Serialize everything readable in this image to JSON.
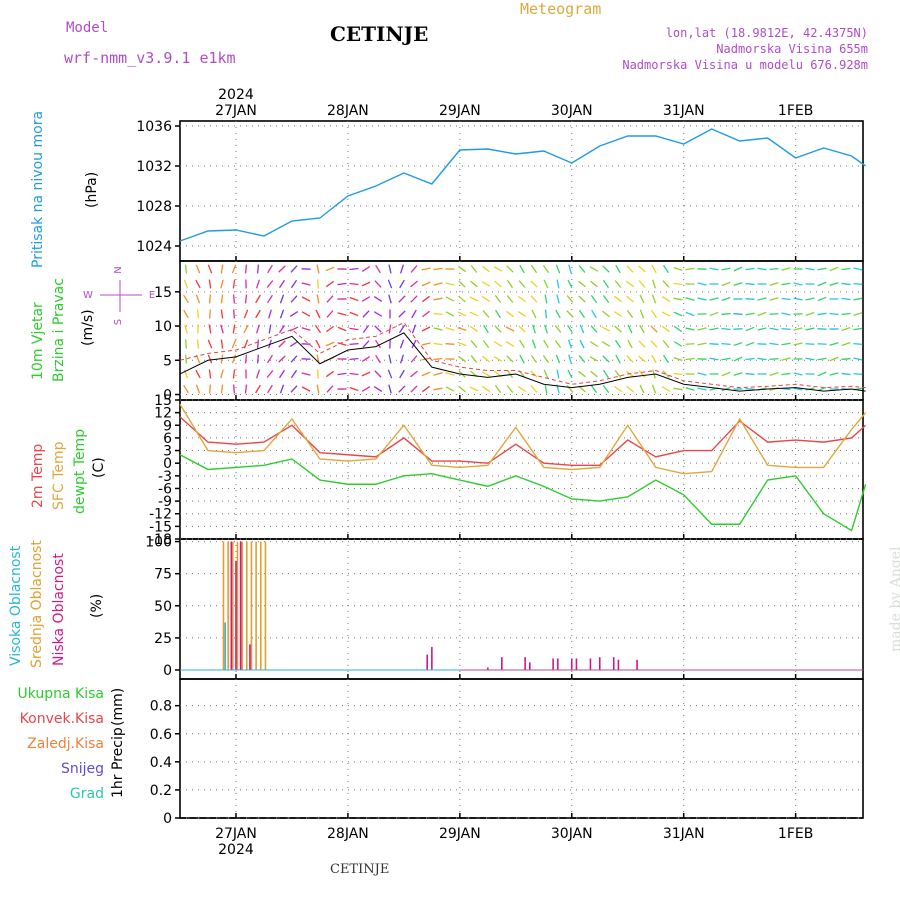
{
  "header": {
    "model_label": "Model",
    "model_name": "wrf-nmm_v3.9.1 e1km",
    "station": "CETINJE",
    "meteogram": "Meteogram",
    "lonlat": "lon,lat (18.9812E, 42.4375N)",
    "altitude": "Nadmorska Visina 655m",
    "model_altitude": "Nadmorska Visina u modelu 676.928m"
  },
  "footer": {
    "station": "CETINJE",
    "watermark": "made by Angel"
  },
  "colors": {
    "pressure": "#1e9be6",
    "temp": "#e8464a",
    "sfc": "#e0a83c",
    "dew": "#2ecc2e",
    "high_cloud": "#2ab5d6",
    "mid_cloud": "#e0a030",
    "low_cloud": "#d01888",
    "purple_text": "#b04cc8",
    "grid": "#777777"
  },
  "chart_data": [
    {
      "type": "line",
      "panel": "pressure",
      "ylabel": "Pritisak na nivou mora",
      "unit": "(hPa)",
      "ylim": [
        1022.5,
        1036.5
      ],
      "yticks": [
        1024,
        1028,
        1032,
        1036
      ],
      "x_ticks": [
        "27JAN",
        "28JAN",
        "29JAN",
        "30JAN",
        "31JAN",
        "1FEB"
      ],
      "x_tick_year": "2024",
      "x_start": "2024-01-26 12:00",
      "x": [
        "2024-01-26 12:00",
        "2024-01-26 18:00",
        "2024-01-27 00:00",
        "2024-01-27 06:00",
        "2024-01-27 12:00",
        "2024-01-27 18:00",
        "2024-01-28 00:00",
        "2024-01-28 06:00",
        "2024-01-28 12:00",
        "2024-01-28 18:00",
        "2024-01-29 00:00",
        "2024-01-29 06:00",
        "2024-01-29 12:00",
        "2024-01-29 18:00",
        "2024-01-30 00:00",
        "2024-01-30 06:00",
        "2024-01-30 12:00",
        "2024-01-30 18:00",
        "2024-01-31 00:00",
        "2024-01-31 06:00",
        "2024-01-31 12:00",
        "2024-01-31 18:00",
        "2024-02-01 00:00",
        "2024-02-01 06:00",
        "2024-02-01 12:00",
        "2024-02-01 15:00"
      ],
      "values": [
        1024.5,
        1025.5,
        1025.6,
        1025.0,
        1026.5,
        1026.8,
        1029.0,
        1030.0,
        1031.3,
        1030.2,
        1033.6,
        1033.7,
        1033.2,
        1033.5,
        1032.3,
        1034.0,
        1035.0,
        1035.0,
        1034.2,
        1035.7,
        1034.5,
        1034.8,
        1032.8,
        1033.8,
        1033.0,
        1032.0
      ],
      "series": [
        {
          "name": "Pritisak na nivou mora"
        }
      ]
    },
    {
      "type": "line",
      "panel": "wind",
      "ylabel": "10m Vjetar Brzina i Pravac",
      "unit": "(m/s)",
      "compass": {
        "n": "N",
        "s": "S",
        "e": "E",
        "w": "W"
      },
      "ylim": [
        -0.8,
        19.5
      ],
      "yticks": [
        0,
        5,
        10,
        15
      ],
      "x": [
        "2024-01-26 12:00",
        "2024-01-26 18:00",
        "2024-01-27 00:00",
        "2024-01-27 06:00",
        "2024-01-27 12:00",
        "2024-01-27 18:00",
        "2024-01-28 00:00",
        "2024-01-28 06:00",
        "2024-01-28 12:00",
        "2024-01-28 18:00",
        "2024-01-29 00:00",
        "2024-01-29 06:00",
        "2024-01-29 12:00",
        "2024-01-29 18:00",
        "2024-01-30 00:00",
        "2024-01-30 06:00",
        "2024-01-30 12:00",
        "2024-01-30 18:00",
        "2024-01-31 00:00",
        "2024-01-31 06:00",
        "2024-01-31 12:00",
        "2024-01-31 18:00",
        "2024-02-01 00:00",
        "2024-02-01 06:00",
        "2024-02-01 12:00",
        "2024-02-01 15:00"
      ],
      "speed": [
        3.0,
        5.0,
        5.5,
        7.0,
        8.5,
        4.5,
        6.5,
        7.0,
        9.0,
        4.0,
        3.0,
        2.5,
        3.0,
        1.5,
        1.0,
        1.5,
        2.5,
        3.0,
        1.5,
        1.0,
        0.5,
        0.8,
        1.0,
        0.5,
        0.8,
        0.5
      ],
      "gust": [
        5.0,
        6.0,
        6.5,
        8.0,
        9.5,
        6.0,
        8.0,
        8.5,
        10.5,
        5.0,
        4.0,
        3.5,
        3.5,
        2.5,
        1.5,
        2.0,
        3.0,
        3.5,
        2.0,
        1.5,
        1.0,
        1.2,
        1.5,
        1.0,
        1.2,
        1.0
      ],
      "direction": [
        200,
        190,
        170,
        160,
        140,
        10,
        330,
        20,
        350,
        280,
        240,
        225,
        230,
        200,
        210,
        230,
        220,
        210,
        260,
        275,
        280,
        275,
        270,
        280,
        275,
        270
      ],
      "series": [
        {
          "name": "10m Vjetar Brzina i Pravac"
        }
      ]
    },
    {
      "type": "line",
      "panel": "temperature",
      "ylabel": "(C)",
      "ylim": [
        -18,
        15
      ],
      "yticks": [
        -18,
        -15,
        -12,
        -9,
        -6,
        -3,
        0,
        3,
        6,
        9,
        12,
        15
      ],
      "x": [
        "2024-01-26 12:00",
        "2024-01-26 18:00",
        "2024-01-27 00:00",
        "2024-01-27 06:00",
        "2024-01-27 12:00",
        "2024-01-27 18:00",
        "2024-01-28 00:00",
        "2024-01-28 06:00",
        "2024-01-28 12:00",
        "2024-01-28 18:00",
        "2024-01-29 00:00",
        "2024-01-29 06:00",
        "2024-01-29 12:00",
        "2024-01-29 18:00",
        "2024-01-30 00:00",
        "2024-01-30 06:00",
        "2024-01-30 12:00",
        "2024-01-30 18:00",
        "2024-01-31 00:00",
        "2024-01-31 06:00",
        "2024-01-31 12:00",
        "2024-01-31 18:00",
        "2024-02-01 00:00",
        "2024-02-01 06:00",
        "2024-02-01 12:00",
        "2024-02-01 15:00"
      ],
      "series": [
        {
          "name": "2m Temp",
          "values": [
            11.0,
            5.0,
            4.5,
            5.0,
            9.0,
            2.5,
            2.0,
            1.5,
            6.0,
            0.5,
            0.5,
            0.0,
            4.5,
            0.0,
            -0.5,
            -0.5,
            5.5,
            1.5,
            3.0,
            3.0,
            10.0,
            5.0,
            5.5,
            5.0,
            6.0,
            9.0
          ]
        },
        {
          "name": "SFC Temp",
          "values": [
            14.0,
            3.0,
            2.5,
            3.0,
            10.5,
            1.0,
            0.5,
            1.0,
            9.0,
            -0.5,
            -1.0,
            -0.5,
            8.5,
            -1.0,
            -1.5,
            -1.0,
            9.0,
            -1.0,
            -2.5,
            -2.0,
            10.5,
            -0.5,
            -1.0,
            -1.0,
            8.0,
            12.0
          ]
        },
        {
          "name": "dewpt Temp",
          "values": [
            2.0,
            -1.5,
            -1.0,
            -0.5,
            1.0,
            -4.0,
            -5.0,
            -5.0,
            -3.0,
            -2.5,
            -4.0,
            -5.5,
            -3.0,
            -5.5,
            -8.5,
            -9.0,
            -8.0,
            -4.0,
            -7.5,
            -14.5,
            -14.5,
            -4.0,
            -3.0,
            -12.0,
            -16.0,
            -5.0
          ]
        }
      ]
    },
    {
      "type": "bar",
      "panel": "cloud",
      "ylabel": "(%)",
      "ylim": [
        -7,
        102
      ],
      "yticks": [
        0,
        25,
        50,
        75,
        100
      ],
      "series": [
        {
          "name": "Visoka Oblacnost",
          "x": [
            "2024-01-26 22:00"
          ],
          "values": [
            37
          ]
        },
        {
          "name": "Srednja Oblacnost",
          "x": [
            "2024-01-26 21:00",
            "2024-01-26 22:00",
            "2024-01-26 23:00",
            "2024-01-27 00:00",
            "2024-01-27 01:00",
            "2024-01-27 02:00",
            "2024-01-27 03:00",
            "2024-01-27 04:00",
            "2024-01-27 05:00",
            "2024-01-27 06:00"
          ],
          "values": [
            100,
            100,
            100,
            100,
            100,
            100,
            100,
            100,
            100,
            100
          ]
        },
        {
          "name": "Niska Oblacnost",
          "x": [
            "2024-01-26 23:00",
            "2024-01-27 00:00",
            "2024-01-27 01:00",
            "2024-01-27 03:00",
            "2024-01-28 17:00",
            "2024-01-28 18:00",
            "2024-01-29 06:00",
            "2024-01-29 09:00",
            "2024-01-29 14:00",
            "2024-01-29 15:00",
            "2024-01-29 20:00",
            "2024-01-29 21:00",
            "2024-01-30 00:00",
            "2024-01-30 01:00",
            "2024-01-30 04:00",
            "2024-01-30 06:00",
            "2024-01-30 09:00",
            "2024-01-30 10:00",
            "2024-01-30 14:00"
          ],
          "values": [
            100,
            85,
            100,
            20,
            12,
            18,
            2,
            10,
            10,
            6,
            9,
            9,
            9,
            9,
            9,
            10,
            10,
            8,
            8
          ]
        }
      ]
    },
    {
      "type": "bar",
      "panel": "precip",
      "ylabel": "1hr Precip",
      "unit": "(mm)",
      "ylim": [
        0,
        0.99
      ],
      "yticks": [
        0,
        0.2,
        0.4,
        0.6,
        0.8
      ],
      "series": [
        {
          "name": "Ukupna Kisa",
          "values": []
        },
        {
          "name": "Konvek.Kisa",
          "values": []
        },
        {
          "name": "Zaledj.Kisa",
          "values": []
        },
        {
          "name": "Snijeg",
          "values": []
        },
        {
          "name": "Grad",
          "values": []
        }
      ]
    }
  ]
}
